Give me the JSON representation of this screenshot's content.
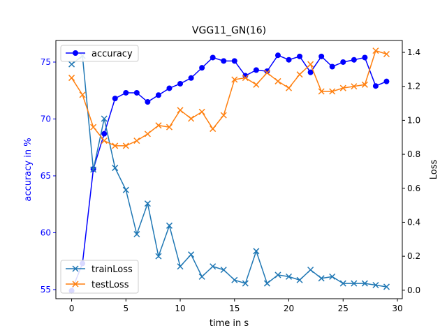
{
  "chart_data": {
    "type": "line",
    "title": "VGG11_GN(16)",
    "xlabel": "time in s",
    "ylabel_left": "accuracy in %",
    "ylabel_right": "Loss",
    "xlim": [
      -1.45,
      30.45
    ],
    "ylim_left": [
      54.2,
      76.9
    ],
    "ylim_right": [
      -0.05,
      1.47
    ],
    "x_ticks": [
      0,
      5,
      10,
      15,
      20,
      25,
      30
    ],
    "y_ticks_left": [
      55,
      60,
      65,
      70,
      75
    ],
    "y_ticks_right": [
      0.0,
      0.2,
      0.4,
      0.6,
      0.8,
      1.0,
      1.2,
      1.4
    ],
    "x": [
      0,
      1,
      2,
      3,
      4,
      5,
      6,
      7,
      8,
      9,
      10,
      11,
      12,
      13,
      14,
      15,
      16,
      17,
      18,
      19,
      20,
      21,
      22,
      23,
      24,
      25,
      26,
      27,
      28,
      29
    ],
    "series": [
      {
        "name": "accuracy",
        "axis": "left",
        "color": "#0000ff",
        "marker": "circle",
        "values": [
          54.9,
          57.3,
          65.6,
          68.7,
          71.8,
          72.3,
          72.3,
          71.5,
          72.1,
          72.7,
          73.1,
          73.6,
          74.5,
          75.4,
          75.1,
          75.1,
          73.8,
          74.3,
          74.2,
          75.6,
          75.2,
          75.5,
          74.1,
          75.5,
          74.6,
          75.0,
          75.2,
          75.4,
          72.9,
          73.3
        ]
      },
      {
        "name": "trainLoss",
        "axis": "right",
        "color": "#1f77b4",
        "marker": "x",
        "values": [
          1.33,
          1.38,
          0.71,
          1.01,
          0.72,
          0.59,
          0.33,
          0.51,
          0.2,
          0.38,
          0.14,
          0.21,
          0.08,
          0.14,
          0.12,
          0.06,
          0.04,
          0.23,
          0.04,
          0.09,
          0.08,
          0.06,
          0.12,
          0.07,
          0.08,
          0.04,
          0.04,
          0.04,
          0.03,
          0.02
        ]
      },
      {
        "name": "testLoss",
        "axis": "right",
        "color": "#ff7f0e",
        "marker": "x",
        "values": [
          1.25,
          1.15,
          0.96,
          0.88,
          0.85,
          0.85,
          0.88,
          0.92,
          0.97,
          0.96,
          1.06,
          1.01,
          1.05,
          0.95,
          1.03,
          1.24,
          1.25,
          1.21,
          1.28,
          1.23,
          1.19,
          1.27,
          1.33,
          1.17,
          1.17,
          1.19,
          1.2,
          1.21,
          1.41,
          1.39
        ]
      }
    ],
    "legends": [
      {
        "position": "upper-left",
        "entries": [
          "accuracy"
        ]
      },
      {
        "position": "lower-left",
        "entries": [
          "trainLoss",
          "testLoss"
        ]
      }
    ],
    "grid": false
  }
}
